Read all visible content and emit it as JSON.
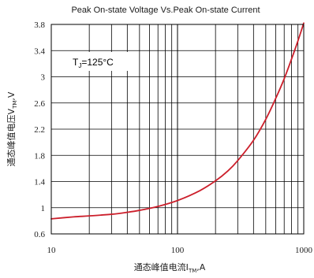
{
  "chart_data": {
    "type": "line",
    "title": "Peak On-state Voltage Vs.Peak On-state Current",
    "xlabel": {
      "main": "通态峰值电流I",
      "sub": "TM",
      "tail": ",A"
    },
    "ylabel": {
      "main": "通态峰值电压V",
      "sub": "TM",
      "tail": ",V"
    },
    "x_scale": "log",
    "xlim": [
      10,
      1000
    ],
    "ylim": [
      0.6,
      3.8
    ],
    "x_tick_labels": [
      "10",
      "100",
      "1000"
    ],
    "y_tick_labels": [
      "0.6",
      "1",
      "1.4",
      "1.8",
      "2.2",
      "2.6",
      "3",
      "3.4",
      "3.8"
    ],
    "y_ticks": [
      0.6,
      1.0,
      1.4,
      1.8,
      2.2,
      2.6,
      3.0,
      3.4,
      3.8
    ],
    "grid": true,
    "annotation": {
      "main": "T",
      "sub": "J",
      "tail": "=125°C"
    },
    "series": [
      {
        "color": "#cc1f2b",
        "x": [
          10,
          15,
          20,
          30,
          40,
          50,
          70,
          100,
          150,
          200,
          250,
          300,
          400,
          500,
          600,
          700,
          800,
          900,
          1000
        ],
        "y": [
          0.83,
          0.86,
          0.875,
          0.9,
          0.93,
          0.96,
          1.02,
          1.11,
          1.26,
          1.41,
          1.56,
          1.72,
          2.03,
          2.35,
          2.67,
          2.97,
          3.27,
          3.55,
          3.82
        ]
      }
    ]
  }
}
